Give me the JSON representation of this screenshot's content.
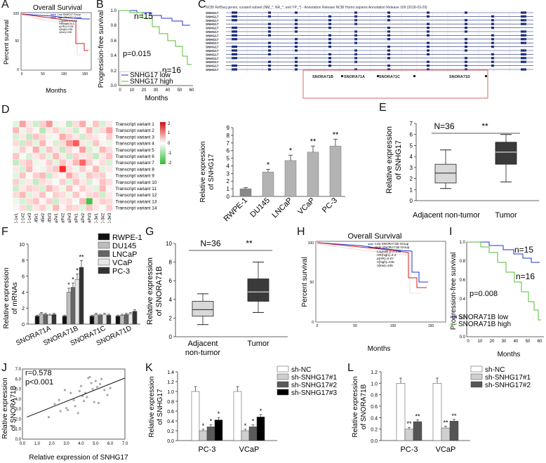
{
  "colors": {
    "blue": "#2233cc",
    "green": "#55bb33",
    "red": "#cc2222",
    "pink": "#ee99aa",
    "box_light": "#d9d9d9",
    "box_dark": "#3a3a3a"
  },
  "panels": {
    "A": {
      "label": "A",
      "title": "Overall Survival",
      "ylabel": "Percent survival",
      "xlabel": "Months",
      "legend": [
        "Low SNHG17 Group",
        "High SNHG17 Group",
        "Logrank p=0.011",
        "HR(high)=6.3",
        "p(HR)=0.036",
        "n(high)=248",
        "n(low)=248"
      ],
      "yticks": [
        "0",
        "50",
        "100"
      ],
      "xticks": [
        "0",
        "50",
        "100",
        "150"
      ]
    },
    "B": {
      "label": "B",
      "ylabel": "Progression-free survival",
      "xlabel": "Months",
      "pval": "p=0.015",
      "n_top": "n=15",
      "n_bot": "n=16",
      "legend": [
        "SNHG17 low",
        "SNHG17 high"
      ],
      "yticks": [
        "0.0",
        "0.2",
        "0.4",
        "0.6",
        "0.8",
        "1.0"
      ],
      "xticks": [
        "0",
        "10",
        "20",
        "30",
        "40",
        "50",
        "60"
      ]
    },
    "C": {
      "label": "C",
      "header": "NCBI RefSeq genes, curated subset (NM_*, NR_*, and YP_*) - Annotation Release NCBI Homo sapiens Annotation Release 109 (2018-03-29)",
      "gene": "SNHG17",
      "snora": [
        "SNORA71B",
        "SNORA71A",
        "SNORA71C",
        "SNORA71D"
      ]
    },
    "D": {
      "label": "D",
      "variants": [
        "Transcript variant 1",
        "Transcript variant 2",
        "Transcript variant 3",
        "Transcript variant 4",
        "Transcript variant 5",
        "Transcript variant 6",
        "Transcript variant 7",
        "Transcript variant 8",
        "Transcript variant 9",
        "Transcript variant 10",
        "Transcript variant 11",
        "Transcript variant 12",
        "Transcript variant 13",
        "Transcript variant 14"
      ],
      "samples": [
        "RWPE-1#1",
        "RWPE-1#2",
        "RWPE-1#3",
        "DU145#1",
        "DU145#2",
        "DU145#3",
        "LNCaP#1",
        "LNCaP#2",
        "LNCaP#3",
        "VCaP#1",
        "VCaP#2",
        "VCaP#3",
        "PC-3#1",
        "PC-3#2",
        "PC-3#3"
      ],
      "scale": [
        "2",
        "1",
        "0",
        "-1",
        "-2"
      ]
    },
    "E": {
      "label": "E",
      "ylabel": "Relative expression of SNHG17",
      "n": "N=36",
      "sig": "**",
      "groups": [
        "Adjacent non-tumor",
        "Tumor"
      ],
      "yticks": [
        "0",
        "1",
        "2",
        "3",
        "4",
        "5",
        "6",
        "7"
      ]
    },
    "F": {
      "label": "F",
      "ylabel": "Relative expression of mRNAs",
      "legend": [
        "RWPE-1",
        "DU145",
        "LNCaP",
        "VCaP",
        "PC-3"
      ],
      "yticks": [
        "0",
        "2",
        "4",
        "6",
        "8",
        "10"
      ]
    },
    "G": {
      "label": "G",
      "ylabel": "Relative expression of SNORA71B",
      "n": "N=36",
      "sig": "**",
      "groups": [
        "Adjacent non-tumor",
        "Tumor"
      ],
      "yticks": [
        "0",
        "2",
        "4",
        "6",
        "8",
        "10"
      ]
    },
    "H": {
      "label": "H",
      "title": "Overall Survival",
      "ylabel": "Percent survival",
      "xlabel": "Months",
      "legend": [
        "Low SNORA71B Group",
        "High SNORA71B Group",
        "Logrank p=0.049",
        "HR(high)=4.2",
        "p(HR)=0.07",
        "n(high)=246",
        "n(low)=246"
      ],
      "yticks": [
        "0",
        "50",
        "100"
      ],
      "xticks": [
        "0",
        "50",
        "100",
        "150"
      ]
    },
    "I": {
      "label": "I",
      "ylabel": "Progression-free survival",
      "xlabel": "Months",
      "pval": "p=0.008",
      "n_top": "n=15",
      "n_bot": "n=16",
      "legend": [
        "SNORA71B low",
        "SNORA71B high"
      ],
      "yticks": [
        "0.0",
        "0.2",
        "0.4",
        "0.6",
        "0.8",
        "1.0"
      ],
      "xticks": [
        "0",
        "10",
        "20",
        "30",
        "40",
        "50",
        "60"
      ]
    },
    "J": {
      "label": "J",
      "ylabel": "Relative expression of SNORA71B",
      "xlabel": "Relative expression of SNHG17",
      "r": "r=0.578",
      "p": "p<0.001",
      "xticks": [
        "0.0",
        "1.0",
        "2.0",
        "3.0",
        "4.0",
        "5.0",
        "6.0",
        "7.0"
      ],
      "yticks": [
        "0.0",
        "1.0",
        "2.0",
        "3.0",
        "4.0",
        "5.0",
        "6.0",
        "7.0"
      ]
    },
    "K": {
      "label": "K",
      "ylabel": "Relative expression of SNHG17",
      "legend": [
        "sh-NC",
        "sh-SNHG17#1",
        "sh-SNHG17#2",
        "sh-SNHG17#3"
      ],
      "yticks": [
        "0.0",
        "0.2",
        "0.4",
        "0.6",
        "0.8",
        "1.0",
        "1.2",
        "1.4"
      ]
    },
    "L": {
      "label": "L",
      "ylabel": "Relative expression of SNORA71B",
      "legend": [
        "sh-NC",
        "sh-SNHG17#1",
        "sh-SNHG17#2"
      ],
      "yticks": [
        "0.0",
        "0.2",
        "0.4",
        "0.6",
        "0.8",
        "1.0",
        "1.2"
      ]
    }
  },
  "chart_data": [
    {
      "type": "bar",
      "id": "D-bar",
      "categories": [
        "RWPE-1",
        "DU145",
        "LNCaP",
        "VCaP",
        "PC-3"
      ],
      "values": [
        1.0,
        3.2,
        4.7,
        5.8,
        6.6
      ],
      "errors": [
        0.15,
        0.35,
        0.7,
        0.8,
        0.9
      ],
      "sig": [
        "",
        "*",
        "*",
        "**",
        "**"
      ],
      "ylabel": "Relative expression of SNHG17",
      "ylim": [
        0,
        9
      ],
      "yticks": [
        "0",
        "1",
        "2",
        "3",
        "4",
        "5",
        "6",
        "7",
        "8",
        "9"
      ]
    },
    {
      "type": "bar",
      "id": "F",
      "categories": [
        "SNORA71A",
        "SNORA71B",
        "SNORA71C",
        "SNORA71D"
      ],
      "series": [
        {
          "name": "RWPE-1",
          "values": [
            1.0,
            1.0,
            1.0,
            1.0
          ]
        },
        {
          "name": "DU145",
          "values": [
            1.3,
            4.0,
            1.2,
            1.1
          ]
        },
        {
          "name": "LNCaP",
          "values": [
            1.2,
            4.6,
            1.1,
            1.2
          ]
        },
        {
          "name": "VCaP",
          "values": [
            1.1,
            5.6,
            1.2,
            1.3
          ]
        },
        {
          "name": "PC-3",
          "values": [
            1.2,
            7.1,
            1.1,
            1.6
          ]
        }
      ],
      "ylim": [
        0,
        10
      ]
    },
    {
      "type": "bar",
      "id": "K",
      "categories": [
        "PC-3",
        "VCaP"
      ],
      "series": [
        {
          "name": "sh-NC",
          "values": [
            1.0,
            1.0
          ]
        },
        {
          "name": "sh-SNHG17#1",
          "values": [
            0.2,
            0.2
          ]
        },
        {
          "name": "sh-SNHG17#2",
          "values": [
            0.28,
            0.28
          ]
        },
        {
          "name": "sh-SNHG17#3",
          "values": [
            0.42,
            0.48
          ]
        }
      ],
      "sig": [
        "",
        "*",
        "*",
        "*"
      ],
      "ylim": [
        0,
        1.4
      ]
    },
    {
      "type": "bar",
      "id": "L",
      "categories": [
        "PC-3",
        "VCaP"
      ],
      "series": [
        {
          "name": "sh-NC",
          "values": [
            1.0,
            1.0
          ]
        },
        {
          "name": "sh-SNHG17#1",
          "values": [
            0.2,
            0.22
          ]
        },
        {
          "name": "sh-SNHG17#2",
          "values": [
            0.33,
            0.34
          ]
        }
      ],
      "sig": [
        "",
        "**",
        "**"
      ],
      "ylim": [
        0,
        1.2
      ]
    },
    {
      "type": "scatter",
      "id": "J",
      "x": [
        1.8,
        2.2,
        2.6,
        3.0,
        3.3,
        3.5,
        3.8,
        4.0,
        4.2,
        4.4,
        4.6,
        4.8,
        5.0,
        5.2,
        5.4,
        5.6,
        2.9,
        3.6,
        4.3,
        4.9,
        5.3,
        3.1,
        4.1,
        4.7,
        5.8,
        2.5,
        3.9,
        4.5,
        5.1,
        6.0
      ],
      "y": [
        2.2,
        3.5,
        2.8,
        3.1,
        4.6,
        3.9,
        2.6,
        5.3,
        3.8,
        4.2,
        6.2,
        5.0,
        5.8,
        3.6,
        6.0,
        4.9,
        4.9,
        3.3,
        4.6,
        3.7,
        5.5,
        2.9,
        4.3,
        5.6,
        4.4,
        3.9,
        4.8,
        6.1,
        5.2,
        5.1
      ],
      "fit": [
        [
          0.3,
          2.2
        ],
        [
          7.0,
          6.1
        ]
      ]
    }
  ]
}
